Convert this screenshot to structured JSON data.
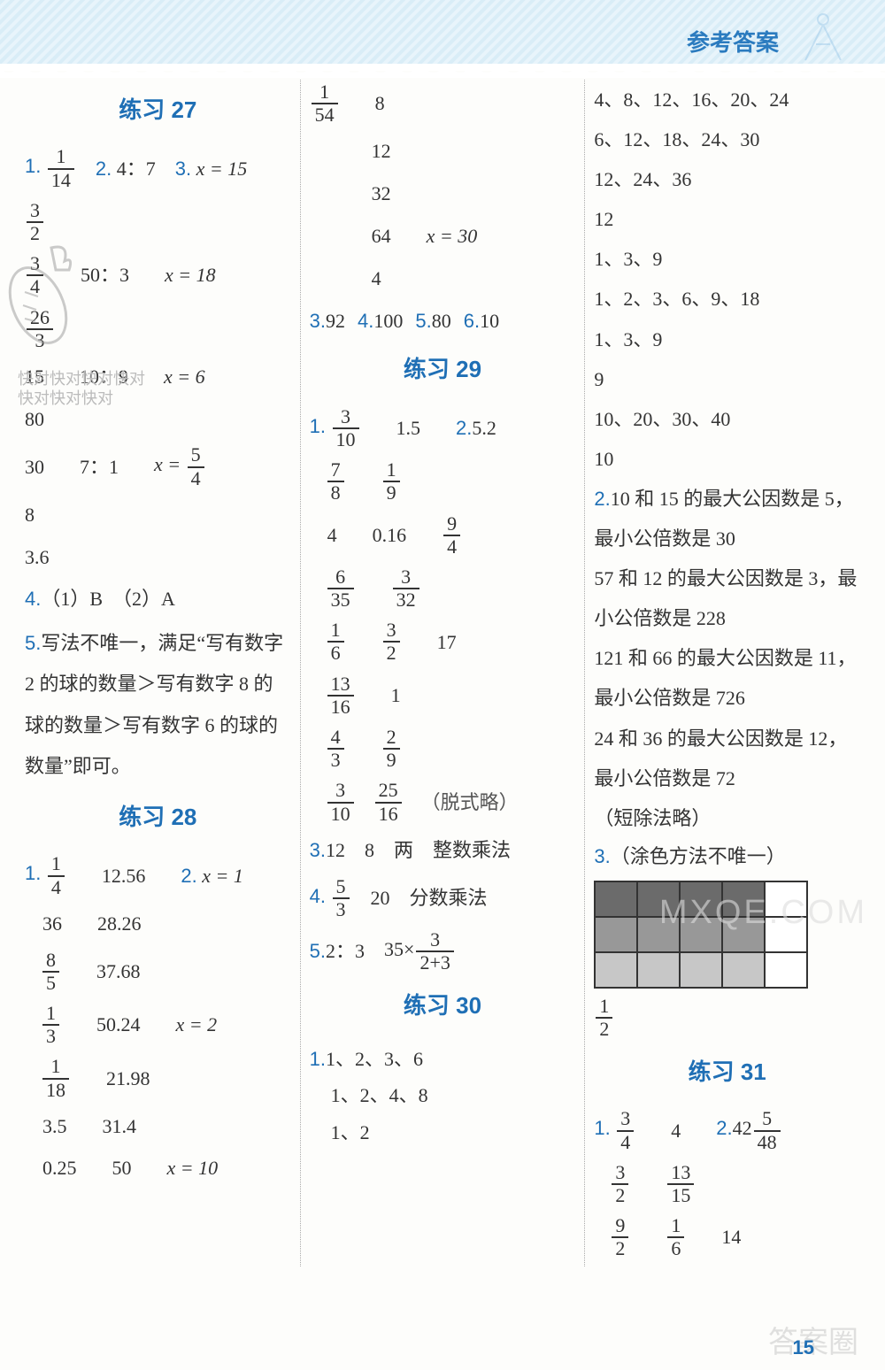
{
  "header": {
    "title": "参考答案"
  },
  "page_number": "15",
  "watermarks": {
    "kd_line1": "快对快对快对快对",
    "kd_line2": "快对快对快对",
    "mx": "MXQE.COM",
    "dq": "答案圈"
  },
  "col1": {
    "s27": {
      "title": "练习 27",
      "q1": {
        "num": "1.",
        "frac_n": "1",
        "frac_d": "14"
      },
      "q2": {
        "num": "2.",
        "text": "4：7"
      },
      "q3": {
        "num": "3.",
        "text": "x = 15"
      },
      "r2": {
        "a_n": "3",
        "a_d": "2"
      },
      "r3": {
        "a_n": "3",
        "a_d": "4",
        "b": "50：3",
        "c": "x = 18"
      },
      "r4": {
        "a_n": "26",
        "a_d": "3"
      },
      "r5": {
        "a": "15",
        "b": "10：9",
        "c": "x = 6"
      },
      "r6": {
        "a": "80"
      },
      "r7": {
        "a": "30",
        "b": "7：1",
        "c_pre": "x =",
        "c_n": "5",
        "c_d": "4"
      },
      "r8": {
        "a": "8"
      },
      "r9": {
        "a": "3.6"
      },
      "q4": {
        "num": "4.",
        "text": "（1）B　（2）A"
      },
      "q5": {
        "num": "5.",
        "text": "写法不唯一，满足“写有数字 2 的球的数量＞写有数字 8 的球的数量＞写有数字 6 的球的数量”即可。"
      }
    },
    "s28": {
      "title": "练习 28",
      "q1": {
        "num": "1.",
        "a_n": "1",
        "a_d": "4",
        "b": "12.56"
      },
      "q2": {
        "num": "2.",
        "text": "x = 1"
      },
      "r2": {
        "a": "36",
        "b": "28.26"
      },
      "r3": {
        "a_n": "8",
        "a_d": "5",
        "b": "37.68"
      },
      "r4": {
        "a_n": "1",
        "a_d": "3",
        "b": "50.24",
        "c": "x = 2"
      },
      "r5": {
        "a_n": "1",
        "a_d": "18",
        "b": "21.98"
      },
      "r6": {
        "a": "3.5",
        "b": "31.4"
      },
      "r7": {
        "a": "0.25",
        "b": "50",
        "c": "x = 10"
      }
    }
  },
  "col2": {
    "top": {
      "r1": {
        "a_n": "1",
        "a_d": "54",
        "b": "8"
      },
      "r2": {
        "a": "12"
      },
      "r3": {
        "a": "32"
      },
      "r4": {
        "a": "64",
        "b": "x = 30"
      },
      "r5": {
        "a": "4"
      }
    },
    "line3": {
      "q3": "3.",
      "v3": "92",
      "q4": "4.",
      "v4": "100",
      "q5": "5.",
      "v5": "80",
      "q6": "6.",
      "v6": "10"
    },
    "s29": {
      "title": "练习 29",
      "q1": {
        "num": "1.",
        "a_n": "3",
        "a_d": "10",
        "b": "1.5"
      },
      "q2": {
        "num": "2.",
        "text": "5.2"
      },
      "r2": {
        "a_n": "7",
        "a_d": "8",
        "b_n": "1",
        "b_d": "9"
      },
      "r3": {
        "a": "4",
        "b": "0.16",
        "c_n": "9",
        "c_d": "4"
      },
      "r4": {
        "a_n": "6",
        "a_d": "35",
        "b_n": "3",
        "b_d": "32"
      },
      "r5": {
        "a_n": "1",
        "a_d": "6",
        "b_n": "3",
        "b_d": "2",
        "c": "17"
      },
      "r6": {
        "a_n": "13",
        "a_d": "16",
        "b": "1"
      },
      "r7": {
        "a_n": "4",
        "a_d": "3",
        "b_n": "2",
        "b_d": "9"
      },
      "r8": {
        "a_n": "3",
        "a_d": "10",
        "b_n": "25",
        "b_d": "16",
        "c": "（脱式略）"
      },
      "q3": {
        "num": "3.",
        "text": "12　8　两　整数乘法"
      },
      "q4": {
        "num": "4.",
        "a_n": "5",
        "a_d": "3",
        "b": "20　分数乘法"
      },
      "q5": {
        "num": "5.",
        "a": "2：3",
        "pre": "35×",
        "b_n": "3",
        "b_d": "2+3"
      }
    },
    "s30": {
      "title": "练习 30",
      "q1": {
        "num": "1.",
        "l1": "1、2、3、6",
        "l2": "1、2、4、8",
        "l3": "1、2"
      }
    }
  },
  "col3": {
    "top": {
      "l1": "4、8、12、16、20、24",
      "l2": "6、12、18、24、30",
      "l3": "12、24、36",
      "l4": "12",
      "l5": "1、3、9",
      "l6": "1、2、3、6、9、18",
      "l7": "1、3、9",
      "l8": "9",
      "l9": "10、20、30、40",
      "l10": "10"
    },
    "q2": {
      "num": "2.",
      "text": "10 和 15 的最大公因数是 5，最小公倍数是 30",
      "l2": "57 和 12 的最大公因数是 3，最小公倍数是 228",
      "l3": "121 和 66 的最大公因数是 11，最小公倍数是 726",
      "l4": "24 和 36 的最大公因数是 12，最小公倍数是 72",
      "l5": "（短除法略）"
    },
    "q3": {
      "num": "3.",
      "text": "（涂色方法不唯一）"
    },
    "grid": {
      "rows": 3,
      "cols": 5,
      "fill_dark": "#6b6b6b",
      "fill_mid": "#989898",
      "fill_light": "#c7c7c7",
      "fill_white": "#ffffff",
      "pattern": [
        [
          "d",
          "d",
          "d",
          "d",
          "w"
        ],
        [
          "m",
          "m",
          "m",
          "m",
          "w"
        ],
        [
          "l",
          "l",
          "l",
          "l",
          "w"
        ]
      ]
    },
    "q3_ans": {
      "n": "1",
      "d": "2"
    },
    "s31": {
      "title": "练习 31",
      "q1": {
        "num": "1.",
        "a_n": "3",
        "a_d": "4",
        "b": "4"
      },
      "q2": {
        "num": "2.",
        "pre": "42",
        "a_n": "5",
        "a_d": "48"
      },
      "r2": {
        "a_n": "3",
        "a_d": "2",
        "b_n": "13",
        "b_d": "15"
      },
      "r3": {
        "a_n": "9",
        "a_d": "2",
        "b_n": "1",
        "b_d": "6",
        "c": "14"
      }
    }
  }
}
